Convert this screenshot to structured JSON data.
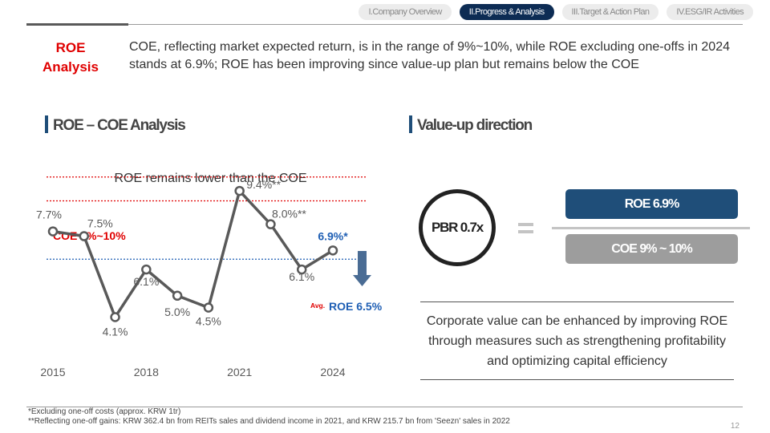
{
  "nav": {
    "tabs": [
      {
        "label": "I.Company Overview",
        "active": false
      },
      {
        "label": "II.Progress & Analysis",
        "active": true
      },
      {
        "label": "III.Target & Action Plan",
        "active": false
      },
      {
        "label": "IV.ESG/IR Activities",
        "active": false
      }
    ]
  },
  "header": {
    "title_line1": "ROE",
    "title_line2": "Analysis",
    "summary": "COE, reflecting market expected return, is in the range of 9%~10%, while ROE excluding one-offs in 2024 stands at 6.9%; ROE has been improving since value-up plan but remains below the COE"
  },
  "left_section": {
    "heading": "ROE – COE Analysis",
    "chart_subtitle": "ROE remains lower than the COE"
  },
  "chart_data": {
    "type": "line",
    "title": "ROE remains lower than the COE",
    "x": [
      2015,
      2016,
      2017,
      2018,
      2019,
      2020,
      2021,
      2022,
      2023,
      2024
    ],
    "values": [
      7.7,
      7.5,
      4.1,
      6.1,
      5.0,
      4.5,
      9.4,
      8.0,
      6.1,
      6.9
    ],
    "point_labels": [
      "7.7%",
      "7.5%",
      "4.1%",
      "6.1%",
      "5.0%",
      "4.5%",
      "9.4%**",
      "8.0%**",
      "6.1%",
      "6.9%*"
    ],
    "x_tick_labels": [
      "2015",
      "2018",
      "2021",
      "2024"
    ],
    "coe_band": {
      "label": "COE 9%~10%",
      "low": 9,
      "high": 10
    },
    "avg_roe": {
      "prefix": "Avg.",
      "label": "ROE 6.5%",
      "value": 6.5
    },
    "ylim": [
      3,
      10.5
    ],
    "colors": {
      "line": "#595959",
      "coe": "#e00000",
      "avg": "#1f5fb4",
      "arrow": "#4a6c94",
      "label": "#595959"
    }
  },
  "right_section": {
    "heading": "Value-up direction",
    "pbr_label": "PBR 0.7x",
    "roe_box": "ROE 6.9%",
    "coe_box": "COE 9% ~ 10%",
    "conclusion": "Corporate value can be enhanced by improving ROE through measures such as strengthening profitability and optimizing capital efficiency"
  },
  "footnotes": {
    "note1": "*Excluding one-off costs (approx. KRW 1tr)",
    "note2": "**Reflecting one-off gains: KRW 362.4 bn from REITs sales and dividend income in 2021, and KRW 215.7 bn from 'Seezn' sales in 2022"
  },
  "page_number": "12"
}
